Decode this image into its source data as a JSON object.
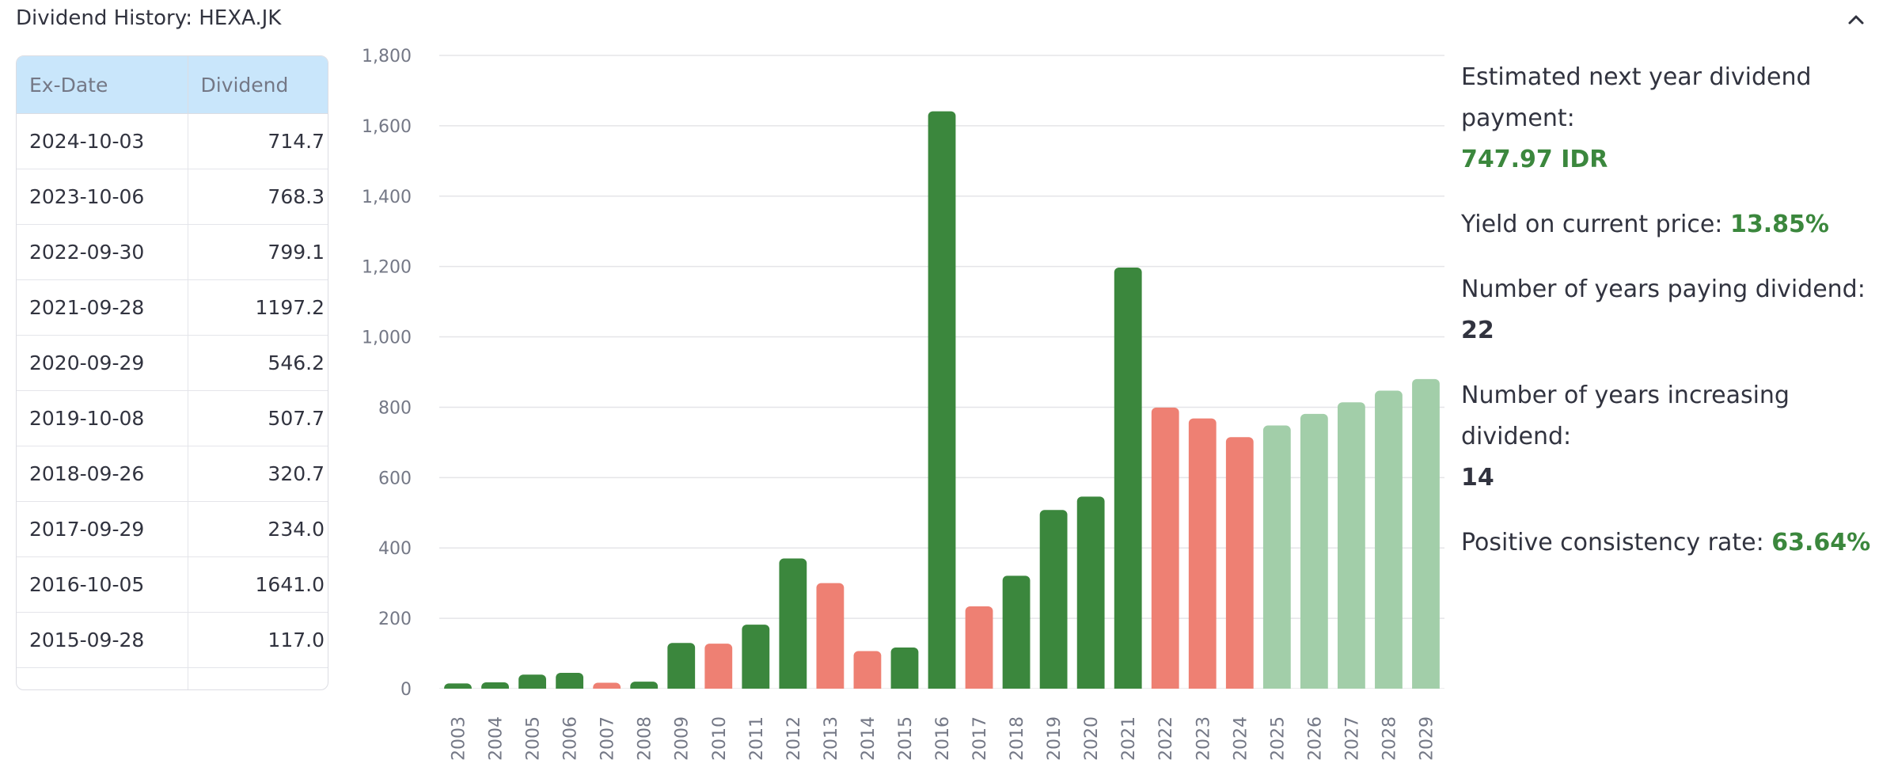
{
  "header": {
    "title": "Dividend History: HEXA.JK",
    "collapse_icon": "chevron-up-icon"
  },
  "table": {
    "columns": [
      "Ex-Date",
      "Dividend"
    ],
    "rows": [
      {
        "date": "2024-10-03",
        "value": "714.7"
      },
      {
        "date": "2023-10-06",
        "value": "768.3"
      },
      {
        "date": "2022-09-30",
        "value": "799.1"
      },
      {
        "date": "2021-09-28",
        "value": "1197.2"
      },
      {
        "date": "2020-09-29",
        "value": "546.2"
      },
      {
        "date": "2019-10-08",
        "value": "507.7"
      },
      {
        "date": "2018-09-26",
        "value": "320.7"
      },
      {
        "date": "2017-09-29",
        "value": "234.0"
      },
      {
        "date": "2016-10-05",
        "value": "1641.0"
      },
      {
        "date": "2015-09-28",
        "value": "117.0"
      },
      {
        "date": "",
        "value": ""
      }
    ]
  },
  "colors": {
    "increase": "#3b873d",
    "decrease": "#ee8073",
    "projected": "#a2cea9",
    "grid": "#e5e5e8",
    "tick": "#747886"
  },
  "chart_data": {
    "type": "bar",
    "title": "",
    "xlabel": "",
    "ylabel": "",
    "ylim": [
      0,
      1800
    ],
    "yticks": [
      "0",
      "200",
      "400",
      "600",
      "800",
      "1,000",
      "1,200",
      "1,400",
      "1,600",
      "1,800"
    ],
    "grid": true,
    "categories": [
      "2003",
      "2004",
      "2005",
      "2006",
      "2007",
      "2008",
      "2009",
      "2010",
      "2011",
      "2012",
      "2013",
      "2014",
      "2015",
      "2016",
      "2017",
      "2018",
      "2019",
      "2020",
      "2021",
      "2022",
      "2023",
      "2024",
      "2025",
      "2026",
      "2027",
      "2028",
      "2029"
    ],
    "values": [
      15,
      18,
      40,
      45,
      17,
      20,
      130,
      128,
      182,
      370,
      300,
      107,
      117,
      1641,
      234,
      321,
      508,
      546,
      1197,
      799,
      768,
      715,
      748,
      781,
      814,
      847,
      880
    ],
    "status": [
      "increase",
      "increase",
      "increase",
      "increase",
      "decrease",
      "increase",
      "increase",
      "decrease",
      "increase",
      "increase",
      "decrease",
      "decrease",
      "increase",
      "increase",
      "decrease",
      "increase",
      "increase",
      "increase",
      "increase",
      "decrease",
      "decrease",
      "decrease",
      "projected",
      "projected",
      "projected",
      "projected",
      "projected"
    ]
  },
  "stats": {
    "next_dividend_label": "Estimated next year dividend payment:",
    "next_dividend_value": "747.97 IDR",
    "yield_label": "Yield on current price:",
    "yield_value": "13.85%",
    "years_paying_label": "Number of years paying dividend:",
    "years_paying_value": "22",
    "years_increasing_label": "Number of years increasing dividend:",
    "years_increasing_value": "14",
    "consistency_label": "Positive consistency rate:",
    "consistency_value": "63.64%"
  }
}
